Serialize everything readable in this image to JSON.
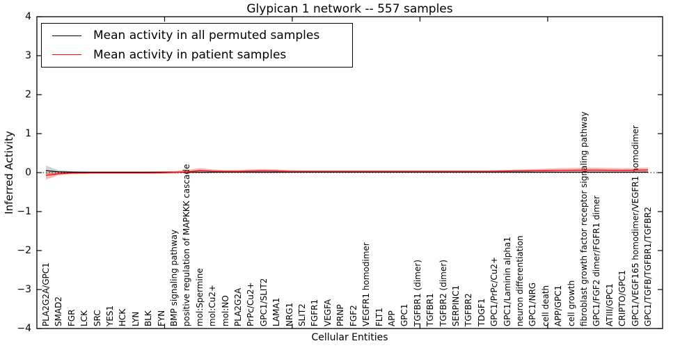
{
  "figure": {
    "title": "Glypican 1 network -- 557 samples",
    "xlabel": "Cellular Entities",
    "ylabel": "Inferred Activity"
  },
  "legend": {
    "entries": [
      {
        "label": "Mean activity in all permuted samples",
        "color": "#000000"
      },
      {
        "label": "Mean activity in patient samples",
        "color": "#ff0000"
      }
    ]
  },
  "chart_data": {
    "type": "line",
    "title": "Glypican 1 network -- 557 samples",
    "xlabel": "Cellular Entities",
    "ylabel": "Inferred Activity",
    "ylim": [
      -4,
      4
    ],
    "grid": false,
    "legend_position": "upper left",
    "zero_line": 0,
    "y_ticks": [
      {
        "v": 4,
        "label": "4"
      },
      {
        "v": 3,
        "label": "3"
      },
      {
        "v": 2,
        "label": "2"
      },
      {
        "v": 1,
        "label": "1"
      },
      {
        "v": 0,
        "label": "0"
      },
      {
        "v": -1,
        "label": "−1"
      },
      {
        "v": -2,
        "label": "−2"
      },
      {
        "v": -3,
        "label": "−3"
      },
      {
        "v": -4,
        "label": "−4"
      }
    ],
    "categories": [
      "PLA2G2A/GPC1",
      "SMAD2",
      "FGR",
      "LCK",
      "SRC",
      "YES1",
      "HCK",
      "LYN",
      "BLK",
      "FYN",
      "BMP signaling pathway",
      "positive regulation of MAPKKK cascade",
      "mol:Spermine",
      "mol:Cu2+",
      "mol:NO",
      "PLA2G2A",
      "PrPc/Cu2+",
      "GPC1/SLIT2",
      "LAMA1",
      "NRG1",
      "SLIT2",
      "FGFR1",
      "VEGFA",
      "PRNP",
      "FGF2",
      "VEGFR1 homodimer",
      "FLT1",
      "APP",
      "GPC1",
      "TGFBR1 (dimer)",
      "TGFBR1",
      "TGFBR2 (dimer)",
      "SERPINC1",
      "TGFBR2",
      "TDGF1",
      "GPC1/PrPc/Cu2+",
      "GPC1/Laminin alpha1",
      "neuron differentiation",
      "GPC1/NRG",
      "cell death",
      "APP/GPC1",
      "cell growth",
      "fibroblast growth factor receptor signaling pathway",
      "GPC1/FGF2 dimer/FGFR1 dimer",
      "ATIII/GPC1",
      "CRIPTO/GPC1",
      "GPC1/VEGF165 homodimer/VEGFR1 homodimer",
      "GPC1/TGFB/TGFBR1/TGFBR2"
    ],
    "series": [
      {
        "name": "Mean activity in all permuted samples",
        "color": "#000000",
        "band_color": "rgba(0,0,0,0.18)",
        "values": [
          0.05,
          0.02,
          0.012,
          0.01,
          0.01,
          0.01,
          0.01,
          0.01,
          0.01,
          0.01,
          0.01,
          0.01,
          0.01,
          0.01,
          0.01,
          0.01,
          0.01,
          0.01,
          0.01,
          0.01,
          0.01,
          0.01,
          0.01,
          0.01,
          0.01,
          0.01,
          0.01,
          0.01,
          0.01,
          0.01,
          0.01,
          0.01,
          0.01,
          0.01,
          0.01,
          0.01,
          0.01,
          0.01,
          0.01,
          0.01,
          0.01,
          0.01,
          0.01,
          0.01,
          0.01,
          0.01,
          0.01,
          0.012
        ],
        "band_upper": [
          0.18,
          0.06,
          0.035,
          0.025,
          0.02,
          0.02,
          0.02,
          0.02,
          0.02,
          0.02,
          0.02,
          0.02,
          0.02,
          0.02,
          0.02,
          0.02,
          0.02,
          0.02,
          0.02,
          0.02,
          0.02,
          0.02,
          0.02,
          0.02,
          0.02,
          0.02,
          0.02,
          0.02,
          0.02,
          0.02,
          0.02,
          0.02,
          0.02,
          0.02,
          0.02,
          0.02,
          0.02,
          0.02,
          0.02,
          0.02,
          0.02,
          0.02,
          0.02,
          0.02,
          0.02,
          0.02,
          0.02,
          0.02
        ],
        "band_lower": [
          -0.05,
          -0.02,
          -0.012,
          -0.005,
          0,
          0,
          0,
          0,
          0,
          0,
          0,
          0,
          0,
          0,
          0,
          0,
          0,
          0,
          0,
          0,
          0,
          0,
          0,
          0,
          0,
          0,
          0,
          0,
          0,
          0,
          0,
          0,
          0,
          0,
          0,
          0,
          0,
          0,
          0,
          0,
          0,
          0,
          0,
          0,
          0,
          0,
          0,
          0
        ]
      },
      {
        "name": "Mean activity in patient samples",
        "color": "#ff0000",
        "band_color": "rgba(255,0,0,0.28)",
        "values": [
          -0.07,
          -0.03,
          -0.012,
          -0.01,
          -0.008,
          -0.008,
          -0.008,
          -0.008,
          -0.006,
          -0.004,
          0.005,
          0.02,
          0.05,
          0.038,
          0.032,
          0.032,
          0.04,
          0.045,
          0.04,
          0.034,
          0.034,
          0.034,
          0.034,
          0.034,
          0.034,
          0.034,
          0.034,
          0.034,
          0.034,
          0.034,
          0.034,
          0.034,
          0.034,
          0.034,
          0.034,
          0.036,
          0.04,
          0.042,
          0.046,
          0.05,
          0.055,
          0.06,
          0.065,
          0.065,
          0.06,
          0.058,
          0.062,
          0.07
        ],
        "band_upper": [
          0,
          0,
          0.01,
          0.015,
          0.02,
          0.02,
          0.02,
          0.02,
          0.025,
          0.03,
          0.04,
          0.07,
          0.115,
          0.085,
          0.065,
          0.065,
          0.085,
          0.095,
          0.085,
          0.065,
          0.055,
          0.055,
          0.055,
          0.055,
          0.055,
          0.055,
          0.055,
          0.055,
          0.055,
          0.055,
          0.055,
          0.055,
          0.055,
          0.055,
          0.055,
          0.06,
          0.07,
          0.08,
          0.09,
          0.1,
          0.11,
          0.12,
          0.125,
          0.125,
          0.12,
          0.115,
          0.12,
          0.13
        ],
        "band_lower": [
          -0.18,
          -0.07,
          -0.035,
          -0.03,
          -0.03,
          -0.03,
          -0.03,
          -0.03,
          -0.03,
          -0.03,
          -0.025,
          -0.02,
          -0.02,
          -0.01,
          -0.005,
          -0.005,
          -0.01,
          -0.01,
          -0.01,
          -0.005,
          0,
          0,
          0,
          0,
          0,
          0,
          0,
          0,
          0,
          0,
          0,
          0,
          0,
          0,
          0,
          0.005,
          0.005,
          0.005,
          0.005,
          0.01,
          0.01,
          0.01,
          0.01,
          0.01,
          0.005,
          0.005,
          0.01,
          0.01
        ]
      }
    ]
  }
}
